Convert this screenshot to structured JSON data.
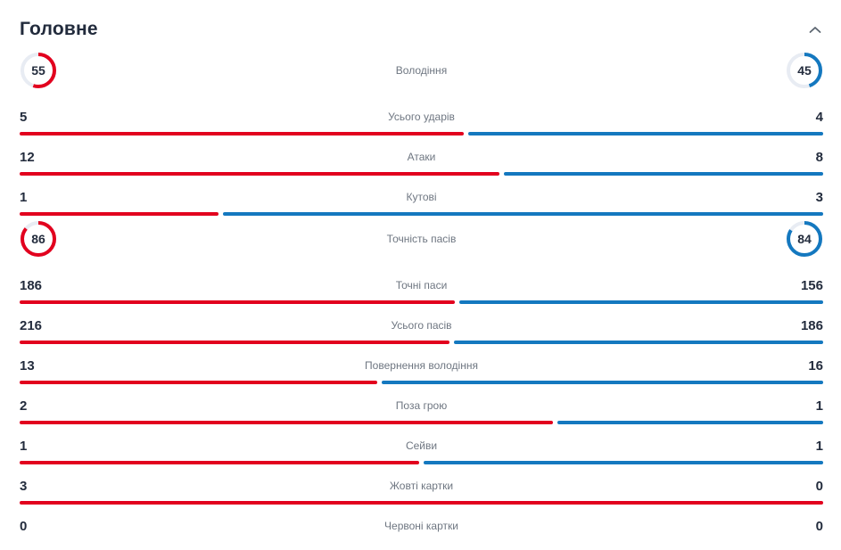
{
  "header": {
    "title": "Головне",
    "collapse_icon": "chevron-up"
  },
  "colors": {
    "home": "#e2001e",
    "away": "#1478bf",
    "donut_track": "#e8ecf3",
    "value_text": "#232c3d",
    "label_text": "#6e7681"
  },
  "stats": [
    {
      "type": "circle",
      "label": "Володіння",
      "home": 55,
      "away": 45
    },
    {
      "type": "bar",
      "label": "Усього ударів",
      "home": 5,
      "away": 4
    },
    {
      "type": "bar",
      "label": "Атаки",
      "home": 12,
      "away": 8
    },
    {
      "type": "bar",
      "label": "Кутові",
      "home": 1,
      "away": 3
    },
    {
      "type": "circle",
      "label": "Точність пасів",
      "home": 86,
      "away": 84
    },
    {
      "type": "bar",
      "label": "Точні паси",
      "home": 186,
      "away": 156
    },
    {
      "type": "bar",
      "label": "Усього пасів",
      "home": 216,
      "away": 186
    },
    {
      "type": "bar",
      "label": "Повернення володіння",
      "home": 13,
      "away": 16
    },
    {
      "type": "bar",
      "label": "Поза грою",
      "home": 2,
      "away": 1
    },
    {
      "type": "bar",
      "label": "Сейви",
      "home": 1,
      "away": 1
    },
    {
      "type": "bar",
      "label": "Жовті картки",
      "home": 3,
      "away": 0
    },
    {
      "type": "bar",
      "label": "Червоні картки",
      "home": 0,
      "away": 0
    }
  ],
  "chart_data": {
    "type": "bar",
    "title": "Головне",
    "orientation": "horizontal comparison (home left red vs away right blue)",
    "categories": [
      "Володіння",
      "Усього ударів",
      "Атаки",
      "Кутові",
      "Точність пасів",
      "Точні паси",
      "Усього пасів",
      "Повернення володіння",
      "Поза грою",
      "Сейви",
      "Жовті картки",
      "Червоні картки"
    ],
    "series": [
      {
        "name": "home",
        "color": "#e2001e",
        "values": [
          55,
          5,
          12,
          1,
          86,
          186,
          216,
          13,
          2,
          1,
          3,
          0
        ]
      },
      {
        "name": "away",
        "color": "#1478bf",
        "values": [
          45,
          4,
          8,
          3,
          84,
          156,
          186,
          16,
          1,
          1,
          0,
          0
        ]
      }
    ],
    "donut_rows": [
      "Володіння",
      "Точність пасів"
    ],
    "legend": "none",
    "grid": false
  }
}
